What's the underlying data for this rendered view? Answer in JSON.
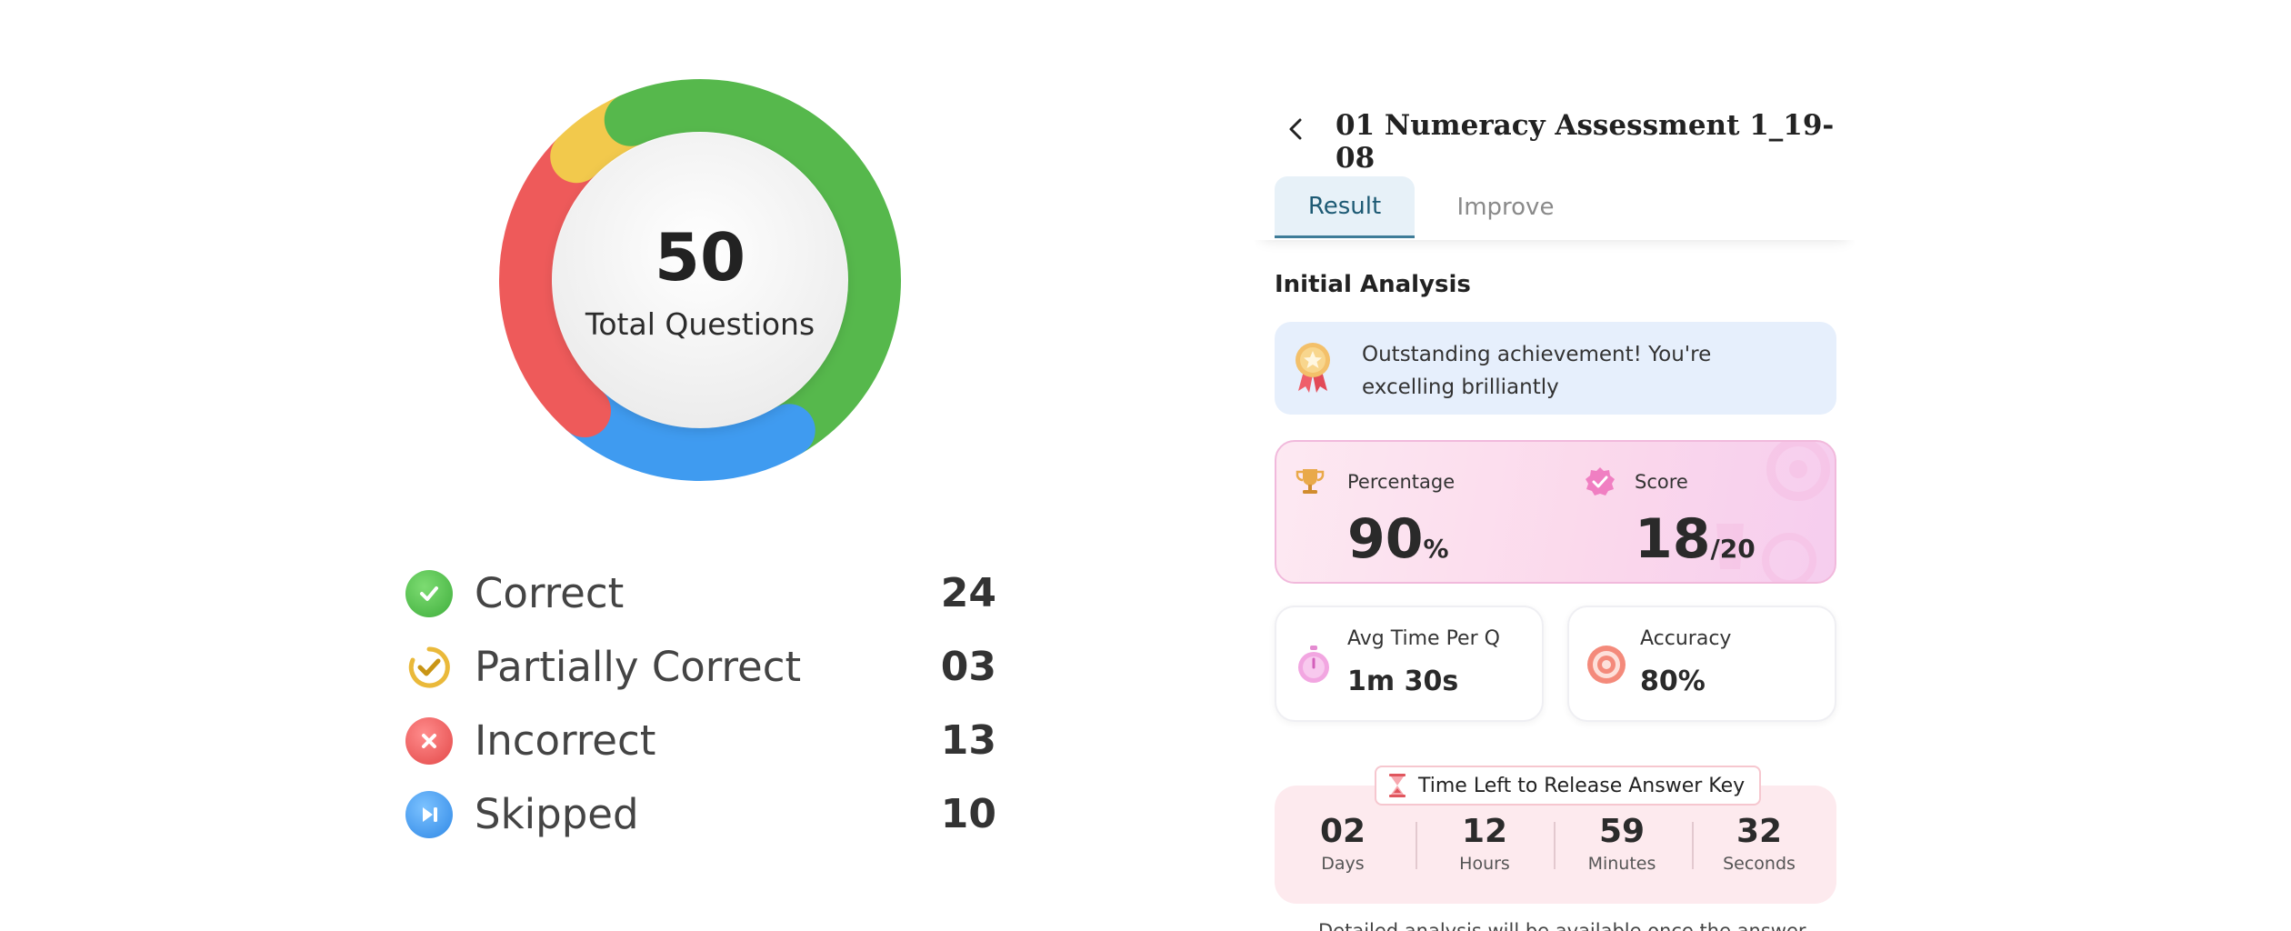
{
  "summary": {
    "total_value": "50",
    "total_label": "Total Questions",
    "segments": [
      {
        "label": "Correct",
        "value": "24",
        "count": 24,
        "color": "#56b84c",
        "icon": "check-circle-icon"
      },
      {
        "label": "Partially Correct",
        "value": "03",
        "count": 3,
        "color": "#f2c94c",
        "icon": "partial-check-icon"
      },
      {
        "label": "Incorrect",
        "value": "13",
        "count": 13,
        "color": "#ee5a5a",
        "icon": "x-circle-icon"
      },
      {
        "label": "Skipped",
        "value": "10",
        "count": 10,
        "color": "#3f9bf0",
        "icon": "skip-forward-icon"
      }
    ]
  },
  "header": {
    "title": "01 Numeracy Assessment 1_19-08",
    "back_icon": "chevron-left-icon"
  },
  "tabs": [
    {
      "label": "Result",
      "active": true
    },
    {
      "label": "Improve",
      "active": false
    }
  ],
  "analysis": {
    "section_title": "Initial Analysis",
    "achievement_text": "Outstanding achievement! You're excelling brilliantly",
    "achievement_icon": "medal-icon",
    "percentage": {
      "label": "Percentage",
      "value": "90",
      "unit": "%",
      "icon": "trophy-icon"
    },
    "score": {
      "label": "Score",
      "value": "18",
      "total": "/20",
      "icon": "badge-check-icon"
    },
    "avg_time": {
      "label": "Avg Time Per Q",
      "value": "1m 30s",
      "icon": "stopwatch-icon"
    },
    "accuracy": {
      "label": "Accuracy",
      "value": "80%",
      "icon": "target-icon"
    }
  },
  "countdown": {
    "title": "Time Left to Release Answer Key",
    "icon": "hourglass-icon",
    "units": [
      {
        "value": "02",
        "label": "Days"
      },
      {
        "value": "12",
        "label": "Hours"
      },
      {
        "value": "59",
        "label": "Minutes"
      },
      {
        "value": "32",
        "label": "Seconds"
      }
    ]
  },
  "footnote": "Detailed analysis will be available once the answer"
}
